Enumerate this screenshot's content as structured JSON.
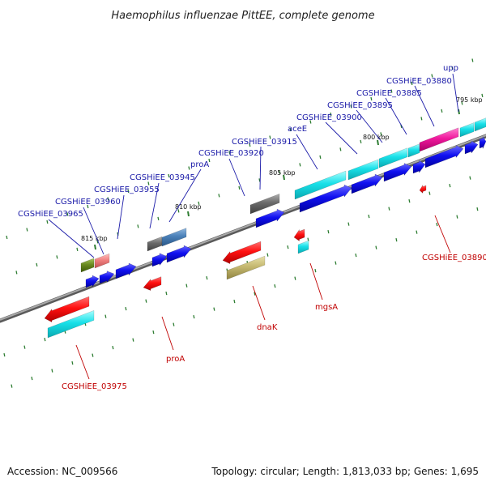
{
  "title": "Haemophilus influenzae PittEE, complete genome",
  "accession": "Accession: NC_009566",
  "summary": "Topology: circular; Length: 1,813,033 bp; Genes: 1,695",
  "colors": {
    "forward_label": "#1a1aa8",
    "reverse_label": "#c00000",
    "backbone": "#808080",
    "tick": "#2e7d32",
    "cds_forward": "#1010e0",
    "cds_reverse": "#e00000"
  },
  "scale_labels": [
    "795 kbp",
    "800 kbp",
    "805 kbp",
    "810 kbp",
    "815 kbp"
  ],
  "forward_gene_labels": [
    "upp",
    "CGSHiEE_03880",
    "CGSHiEE_03885",
    "CGSHiEE_03895",
    "CGSHiEE_03900",
    "aceE",
    "CGSHiEE_03915",
    "CGSHiEE_03920",
    "proA",
    "CGSHiEE_03945",
    "CGSHiEE_03955",
    "CGSHiEE_03960",
    "CGSHiEE_03965"
  ],
  "reverse_gene_labels": [
    "CGSHiEE_03890",
    "mgsA",
    "dnaK",
    "proA",
    "CGSHiEE_03975"
  ]
}
